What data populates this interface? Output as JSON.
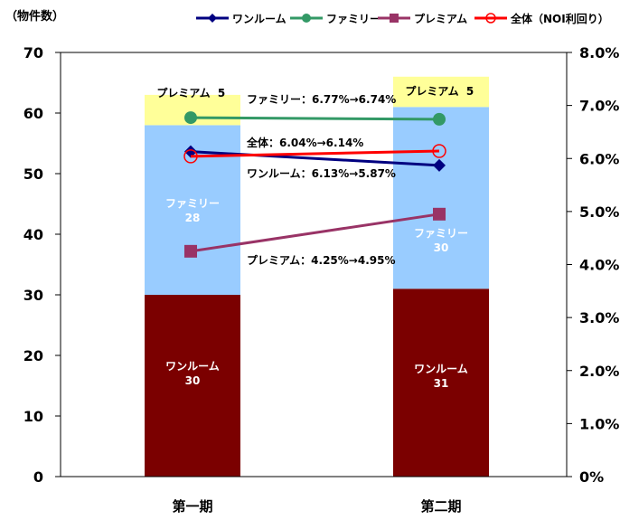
{
  "chart_data": {
    "type": "bar",
    "categories": [
      "第一期",
      "第二期"
    ],
    "y_left_unit": "（物件数）",
    "ylim_left": [
      0,
      70
    ],
    "yticks_left": [
      "0",
      "10",
      "20",
      "30",
      "40",
      "50",
      "60",
      "70"
    ],
    "ylim_right": [
      0,
      8
    ],
    "yticks_right": [
      "0%",
      "1.0%",
      "2.0%",
      "3.0%",
      "4.0%",
      "5.0%",
      "6.0%",
      "7.0%",
      "8.0%"
    ],
    "grid": false,
    "legend_position": "top",
    "stacked_bars": [
      {
        "name": "ワンルーム",
        "values": [
          30,
          31
        ],
        "color": "#7b0000",
        "labels": [
          "30",
          "31"
        ],
        "text_color": "#ffffff"
      },
      {
        "name": "ファミリー",
        "values": [
          28,
          30
        ],
        "color": "#99ccff",
        "labels": [
          "28",
          "30"
        ],
        "text_color": "#ffffff"
      },
      {
        "name": "プレミアム",
        "values": [
          5,
          5
        ],
        "color": "#ffff99",
        "labels": [
          "5",
          "5"
        ],
        "text_color": "#000000"
      }
    ],
    "series": [
      {
        "name": "ワンルーム",
        "axis": "right",
        "values": [
          6.13,
          5.87
        ],
        "color": "#000080",
        "marker": "diamond"
      },
      {
        "name": "ファミリー",
        "axis": "right",
        "values": [
          6.77,
          6.74
        ],
        "color": "#339966",
        "marker": "circle"
      },
      {
        "name": "プレミアム",
        "axis": "right",
        "values": [
          4.25,
          4.95
        ],
        "color": "#993366",
        "marker": "square"
      },
      {
        "name": "全体（NOI利回り）",
        "axis": "right",
        "values": [
          6.04,
          6.14
        ],
        "color": "#ff0000",
        "marker": "open-circle"
      }
    ],
    "annotations": [
      "ファミリー：6.77%→6.74%",
      "全体：6.04%→6.14%",
      "ワンルーム：6.13%→5.87%",
      "プレミアム：4.25%→4.95%"
    ]
  }
}
